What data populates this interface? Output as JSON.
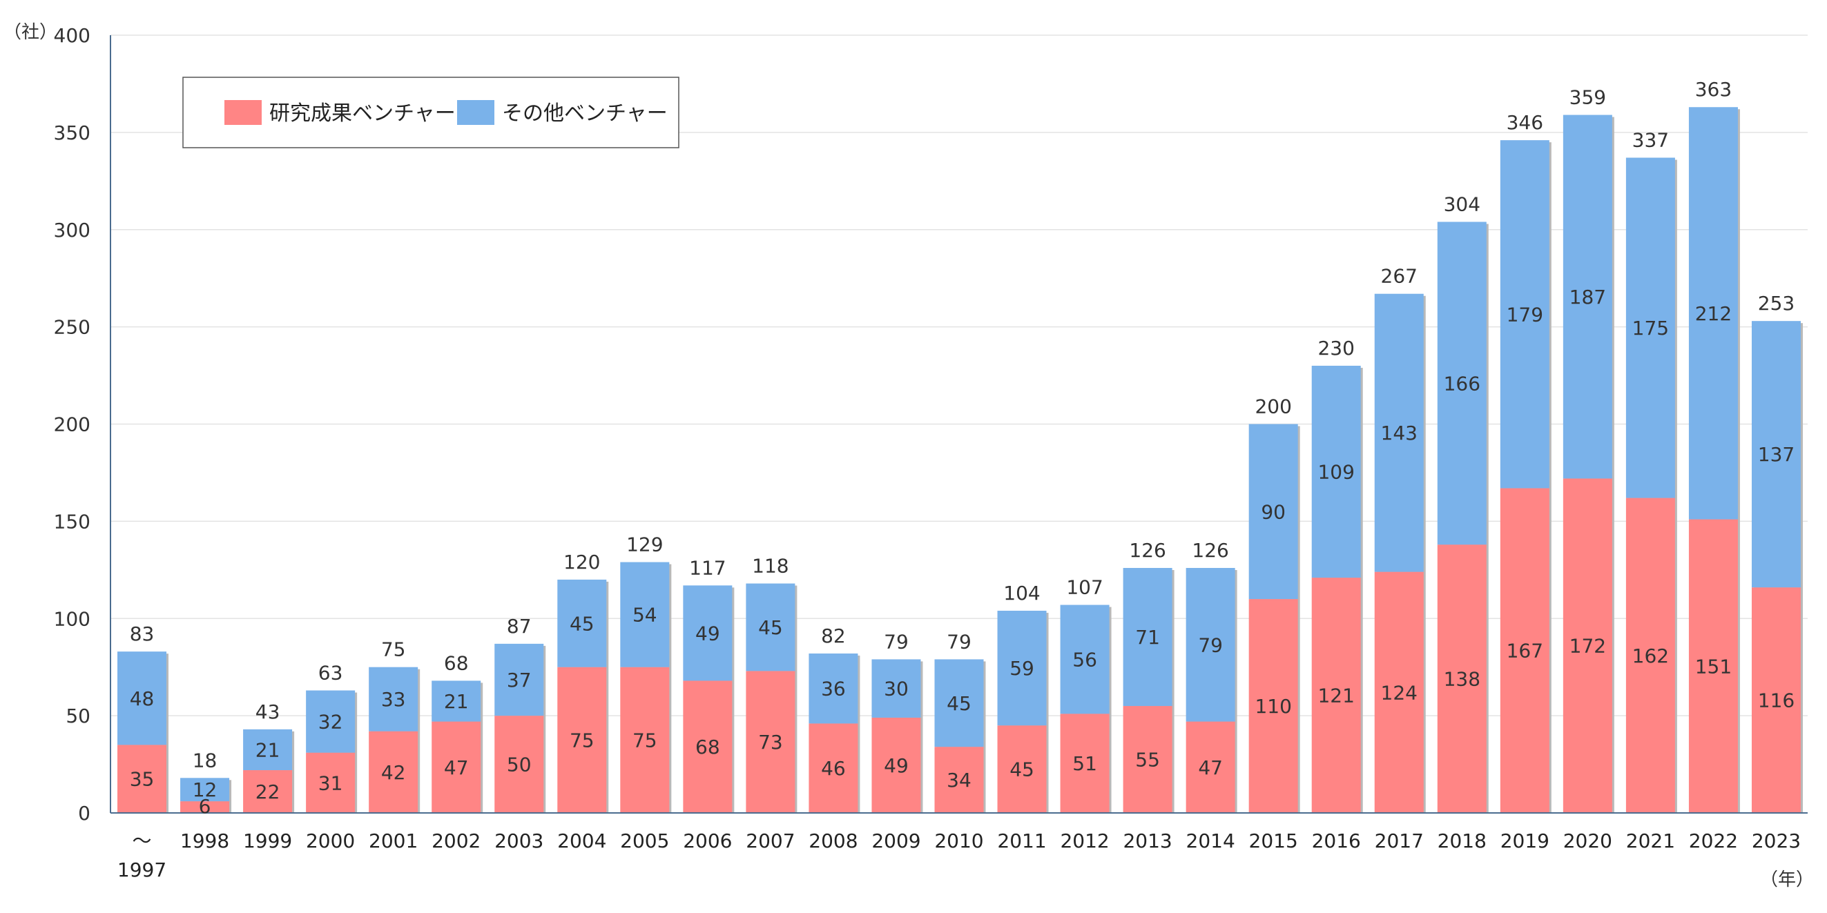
{
  "chart_data": {
    "type": "bar",
    "stacked": true,
    "categories": [
      "～\n1997",
      "1998",
      "1999",
      "2000",
      "2001",
      "2002",
      "2003",
      "2004",
      "2005",
      "2006",
      "2007",
      "2008",
      "2009",
      "2010",
      "2011",
      "2012",
      "2013",
      "2014",
      "2015",
      "2016",
      "2017",
      "2018",
      "2019",
      "2020",
      "2021",
      "2022",
      "2023"
    ],
    "series": [
      {
        "name": "研究成果ベンチャー",
        "color": "#FF8585",
        "values": [
          35,
          6,
          22,
          31,
          42,
          47,
          50,
          75,
          75,
          68,
          73,
          46,
          49,
          34,
          45,
          51,
          55,
          47,
          110,
          121,
          124,
          138,
          167,
          172,
          162,
          151,
          116
        ]
      },
      {
        "name": "その他ベンチャー",
        "color": "#7AB2EA",
        "values": [
          48,
          12,
          21,
          32,
          33,
          21,
          37,
          45,
          54,
          49,
          45,
          36,
          30,
          45,
          59,
          56,
          71,
          79,
          90,
          109,
          143,
          166,
          179,
          187,
          175,
          212,
          137
        ]
      }
    ],
    "totals": [
      83,
      18,
      43,
      63,
      75,
      68,
      87,
      120,
      129,
      117,
      118,
      82,
      79,
      79,
      104,
      107,
      126,
      126,
      200,
      230,
      267,
      304,
      346,
      359,
      337,
      363,
      253
    ],
    "ylim": [
      0,
      400
    ],
    "yticks": [
      0,
      50,
      100,
      150,
      200,
      250,
      300,
      350,
      400
    ],
    "ylabel": "（社）",
    "xlabel": "（年）",
    "grid": true,
    "legend_position": "top-left"
  }
}
